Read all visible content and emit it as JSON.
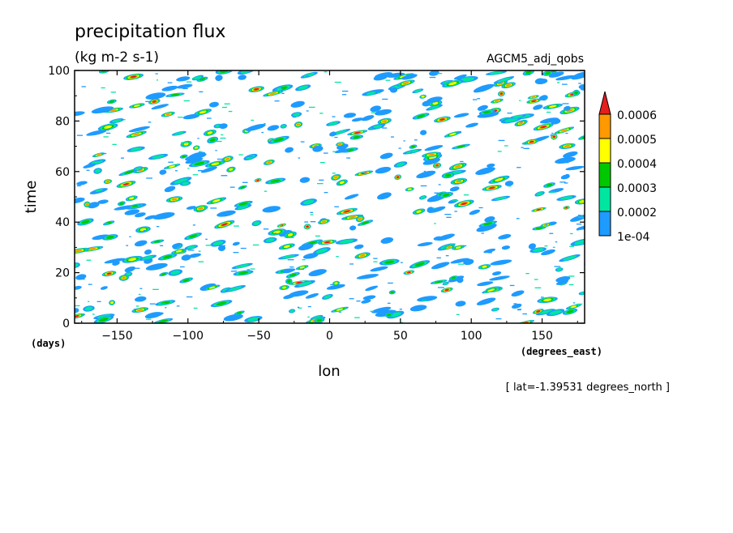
{
  "chart_data": {
    "type": "heatmap",
    "title": "precipitation flux",
    "subtitle": "(kg m-2 s-1)",
    "dataset_label": "AGCM5_adj_qobs",
    "xlabel": "lon",
    "ylabel": "time",
    "x_units": "(degrees_east)",
    "y_units": "(days)",
    "footnote": "[ lat=-1.39531 degrees_north ]",
    "xlim": [
      -180,
      180
    ],
    "ylim": [
      0,
      100
    ],
    "x_ticks": [
      -150,
      -100,
      -50,
      0,
      50,
      100,
      150
    ],
    "y_ticks": [
      0,
      20,
      40,
      60,
      80,
      100
    ],
    "x_tick_labels": [
      "−150",
      "−100",
      "−50",
      "0",
      "50",
      "100",
      "150"
    ],
    "y_tick_labels": [
      "0",
      "20",
      "40",
      "60",
      "80",
      "100"
    ],
    "grid": false,
    "legend": {
      "placement": "right",
      "labels": [
        "1e-04",
        "0.0002",
        "0.0003",
        "0.0004",
        "0.0005",
        "0.0006"
      ],
      "levels": [
        0.0001,
        0.0002,
        0.0003,
        0.0004,
        0.0005,
        0.0006
      ],
      "colors": [
        "#1e9bff",
        "#00e6a0",
        "#00c800",
        "#ffff00",
        "#ff9900",
        "#e61e1e"
      ],
      "overflow_arrow": true
    },
    "pattern": "scattered small eastward-propagating precipitation cells across all longitudes and times"
  }
}
